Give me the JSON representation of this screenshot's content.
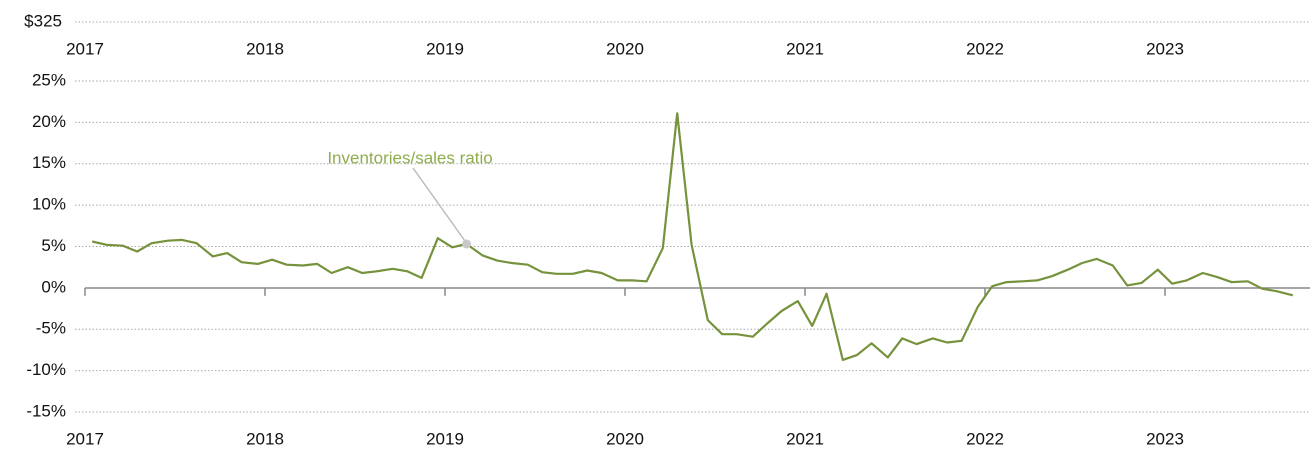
{
  "chart_data": [
    {
      "type": "line",
      "xlim": [
        2017,
        2023.8
      ],
      "xticks": [
        2017,
        2018,
        2019,
        2020,
        2021,
        2022,
        2023
      ],
      "yticks": [
        {
          "value": 325,
          "label": "$325"
        }
      ],
      "grid": true
    },
    {
      "type": "line",
      "xlim": [
        2017,
        2023.8
      ],
      "xticks": [
        2017,
        2018,
        2019,
        2020,
        2021,
        2022,
        2023
      ],
      "ylim": [
        -15,
        25
      ],
      "yticks": [
        {
          "value": 25,
          "label": "25%"
        },
        {
          "value": 20,
          "label": "20%"
        },
        {
          "value": 15,
          "label": "15%"
        },
        {
          "value": 10,
          "label": "10%"
        },
        {
          "value": 5,
          "label": "5%"
        },
        {
          "value": 0,
          "label": "0%"
        },
        {
          "value": -5,
          "label": "-5%"
        },
        {
          "value": -10,
          "label": "-10%"
        },
        {
          "value": -15,
          "label": "-15%"
        }
      ],
      "grid": true,
      "x": [
        2017.04,
        2017.12,
        2017.21,
        2017.29,
        2017.37,
        2017.46,
        2017.54,
        2017.62,
        2017.71,
        2017.79,
        2017.87,
        2017.96,
        2018.04,
        2018.12,
        2018.21,
        2018.29,
        2018.37,
        2018.46,
        2018.54,
        2018.62,
        2018.71,
        2018.79,
        2018.87,
        2018.96,
        2019.04,
        2019.12,
        2019.21,
        2019.29,
        2019.37,
        2019.46,
        2019.54,
        2019.62,
        2019.71,
        2019.79,
        2019.87,
        2019.96,
        2020.04,
        2020.12,
        2020.21,
        2020.29,
        2020.37,
        2020.46,
        2020.54,
        2020.62,
        2020.71,
        2020.79,
        2020.87,
        2020.96,
        2021.04,
        2021.12,
        2021.21,
        2021.29,
        2021.37,
        2021.46,
        2021.54,
        2021.62,
        2021.71,
        2021.79,
        2021.87,
        2021.96,
        2022.04,
        2022.12,
        2022.21,
        2022.29,
        2022.37,
        2022.46,
        2022.54,
        2022.62,
        2022.71,
        2022.79,
        2022.87,
        2022.96,
        2023.04,
        2023.12,
        2023.21,
        2023.29,
        2023.37,
        2023.46,
        2023.54,
        2023.62,
        2023.71
      ],
      "series": [
        {
          "name": "Inventories/sales ratio",
          "color": "#76923c",
          "values": [
            5.6,
            5.2,
            5.1,
            4.4,
            5.4,
            5.7,
            5.8,
            5.4,
            3.8,
            4.2,
            3.1,
            2.9,
            3.4,
            2.8,
            2.7,
            2.9,
            1.8,
            2.5,
            1.8,
            2.0,
            2.3,
            2.0,
            1.2,
            6.0,
            4.9,
            5.3,
            3.9,
            3.3,
            3.0,
            2.8,
            1.9,
            1.7,
            1.7,
            2.1,
            1.8,
            0.9,
            0.9,
            0.8,
            4.8,
            21.1,
            5.2,
            -3.9,
            -5.6,
            -5.6,
            -5.9,
            -4.3,
            -2.8,
            -1.6,
            -4.6,
            -0.7,
            -8.7,
            -8.1,
            -6.7,
            -8.4,
            -6.1,
            -6.8,
            -6.1,
            -6.6,
            -6.4,
            -2.3,
            0.2,
            0.7,
            0.8,
            0.9,
            1.4,
            2.2,
            3.0,
            3.5,
            2.7,
            0.3,
            0.6,
            2.2,
            0.5,
            0.9,
            1.8,
            1.3,
            0.7,
            0.8,
            -0.1,
            -0.4,
            -0.9
          ]
        }
      ]
    }
  ]
}
